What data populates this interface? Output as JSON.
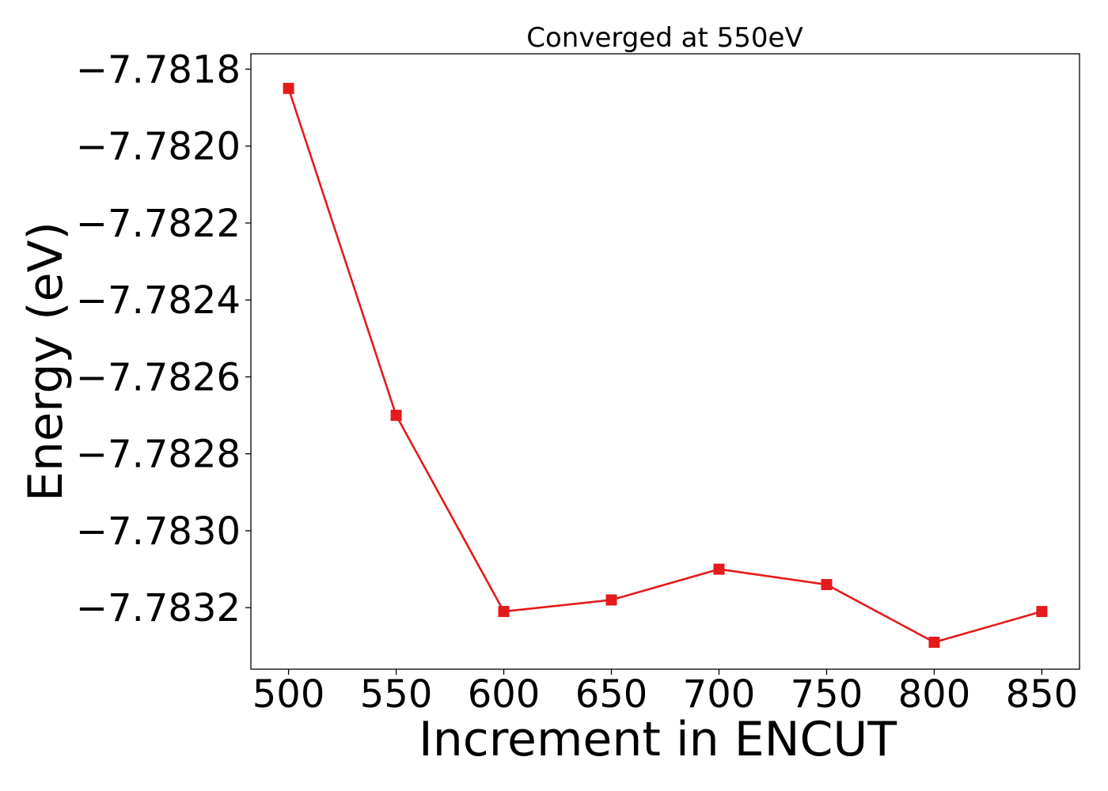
{
  "chart_data": {
    "type": "line",
    "title": "Converged at 550eV",
    "xlabel": "Increment in ENCUT",
    "ylabel": "Energy (eV)",
    "x": [
      500,
      550,
      600,
      650,
      700,
      750,
      800,
      850
    ],
    "series": [
      {
        "values": [
          -7.78185,
          -7.7827,
          -7.78321,
          -7.78318,
          -7.7831,
          -7.78314,
          -7.78329,
          -7.78321
        ],
        "color": "#e41a1c",
        "marker": "square"
      }
    ],
    "xticks": [
      500,
      550,
      600,
      650,
      700,
      750,
      800,
      850
    ],
    "xtick_labels": [
      "500",
      "550",
      "600",
      "650",
      "700",
      "750",
      "800",
      "850"
    ],
    "yticks": [
      -7.7818,
      -7.782,
      -7.7822,
      -7.7824,
      -7.7826,
      -7.7828,
      -7.783,
      -7.7832
    ],
    "ytick_labels": [
      "−7.7818",
      "−7.7820",
      "−7.7822",
      "−7.7824",
      "−7.7826",
      "−7.7828",
      "−7.7830",
      "−7.7832"
    ],
    "xlim": [
      482.5,
      867.5
    ],
    "ylim": [
      -7.78336,
      -7.78176
    ],
    "grid": false,
    "legend": "none"
  }
}
